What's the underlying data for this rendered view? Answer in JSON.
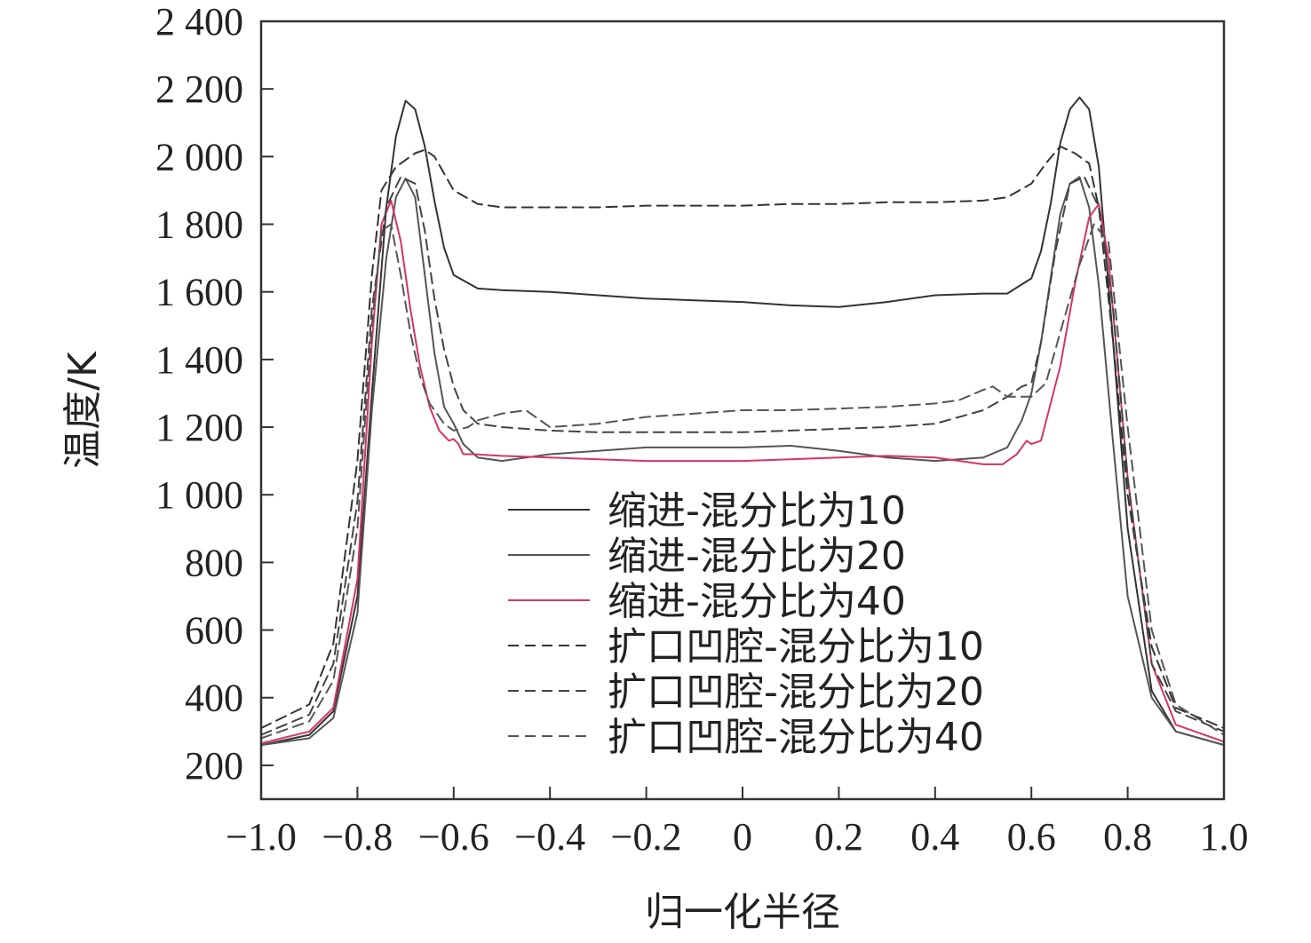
{
  "chart_data": {
    "type": "line",
    "title": "",
    "xlabel": "归一化半径",
    "ylabel": "温度/K",
    "xlim": [
      -1.0,
      1.0
    ],
    "ylim": [
      100,
      2400
    ],
    "x_ticks": [
      -1.0,
      -0.8,
      -0.6,
      -0.4,
      -0.2,
      0,
      0.2,
      0.4,
      0.6,
      0.8,
      1.0
    ],
    "x_tick_labels": [
      "−1.0",
      "−0.8",
      "−0.6",
      "−0.4",
      "−0.2",
      "0",
      "0.2",
      "0.4",
      "0.6",
      "0.8",
      "1.0"
    ],
    "y_ticks": [
      200,
      400,
      600,
      800,
      1000,
      1200,
      1400,
      1600,
      1800,
      2000,
      2200,
      2400
    ],
    "y_tick_labels": [
      "200",
      "400",
      "600",
      "800",
      "1 000",
      "1 200",
      "1 400",
      "1 600",
      "1 800",
      "2 000",
      "2 200",
      "2 400"
    ],
    "grid": false,
    "legend_position": "bottom-center",
    "series": [
      {
        "name": "缩进-混分比为10",
        "color": "#333333",
        "dash": "solid",
        "x": [
          -1.0,
          -0.9,
          -0.85,
          -0.8,
          -0.77,
          -0.74,
          -0.72,
          -0.7,
          -0.68,
          -0.66,
          -0.64,
          -0.62,
          -0.6,
          -0.55,
          -0.5,
          -0.4,
          -0.3,
          -0.2,
          -0.1,
          0.0,
          0.1,
          0.2,
          0.3,
          0.4,
          0.5,
          0.55,
          0.6,
          0.62,
          0.64,
          0.66,
          0.68,
          0.7,
          0.72,
          0.74,
          0.77,
          0.8,
          0.85,
          0.9,
          1.0
        ],
        "y": [
          260,
          290,
          360,
          700,
          1300,
          1850,
          2060,
          2165,
          2140,
          2030,
          1870,
          1730,
          1650,
          1610,
          1605,
          1600,
          1590,
          1580,
          1575,
          1570,
          1560,
          1555,
          1570,
          1590,
          1595,
          1595,
          1640,
          1720,
          1860,
          2040,
          2140,
          2175,
          2140,
          1970,
          1450,
          900,
          420,
          300,
          260
        ]
      },
      {
        "name": "缩进-混分比为20",
        "color": "#555555",
        "dash": "solid",
        "x": [
          -1.0,
          -0.9,
          -0.85,
          -0.8,
          -0.77,
          -0.74,
          -0.72,
          -0.7,
          -0.68,
          -0.66,
          -0.64,
          -0.62,
          -0.6,
          -0.58,
          -0.55,
          -0.5,
          -0.4,
          -0.3,
          -0.2,
          -0.1,
          0.0,
          0.1,
          0.2,
          0.3,
          0.4,
          0.5,
          0.55,
          0.58,
          0.6,
          0.62,
          0.64,
          0.66,
          0.68,
          0.7,
          0.72,
          0.74,
          0.77,
          0.8,
          0.85,
          0.9,
          1.0
        ],
        "y": [
          260,
          280,
          340,
          650,
          1250,
          1700,
          1880,
          1935,
          1880,
          1650,
          1420,
          1260,
          1210,
          1150,
          1110,
          1100,
          1120,
          1130,
          1140,
          1140,
          1140,
          1145,
          1130,
          1110,
          1100,
          1110,
          1140,
          1220,
          1300,
          1450,
          1640,
          1830,
          1920,
          1940,
          1850,
          1620,
          1150,
          700,
          400,
          300,
          260
        ]
      },
      {
        "name": "缩进-混分比为40",
        "color": "#d6336c",
        "dash": "solid",
        "x": [
          -1.0,
          -0.9,
          -0.85,
          -0.8,
          -0.77,
          -0.75,
          -0.73,
          -0.71,
          -0.69,
          -0.67,
          -0.65,
          -0.63,
          -0.61,
          -0.6,
          -0.59,
          -0.58,
          -0.56,
          -0.5,
          -0.4,
          -0.3,
          -0.2,
          -0.1,
          0.0,
          0.1,
          0.2,
          0.3,
          0.4,
          0.5,
          0.54,
          0.57,
          0.59,
          0.6,
          0.62,
          0.66,
          0.69,
          0.72,
          0.74,
          0.76,
          0.8,
          0.85,
          0.9,
          1.0
        ],
        "y": [
          265,
          300,
          370,
          750,
          1450,
          1800,
          1870,
          1750,
          1550,
          1380,
          1260,
          1190,
          1160,
          1165,
          1150,
          1120,
          1120,
          1115,
          1110,
          1105,
          1100,
          1100,
          1100,
          1105,
          1110,
          1115,
          1110,
          1090,
          1090,
          1120,
          1160,
          1150,
          1160,
          1380,
          1620,
          1820,
          1860,
          1700,
          1050,
          500,
          320,
          270
        ]
      },
      {
        "name": "扩口凹腔-混分比为10",
        "color": "#333333",
        "dash": "dashed",
        "x": [
          -1.0,
          -0.9,
          -0.85,
          -0.8,
          -0.77,
          -0.75,
          -0.72,
          -0.7,
          -0.68,
          -0.66,
          -0.64,
          -0.62,
          -0.6,
          -0.55,
          -0.5,
          -0.4,
          -0.3,
          -0.2,
          -0.1,
          0.0,
          0.1,
          0.2,
          0.3,
          0.4,
          0.5,
          0.55,
          0.6,
          0.63,
          0.66,
          0.69,
          0.72,
          0.74,
          0.77,
          0.8,
          0.85,
          0.9,
          1.0
        ],
        "y": [
          310,
          380,
          560,
          1100,
          1650,
          1900,
          1970,
          1990,
          2010,
          2020,
          2000,
          1950,
          1900,
          1860,
          1850,
          1850,
          1850,
          1855,
          1855,
          1855,
          1860,
          1860,
          1865,
          1865,
          1870,
          1880,
          1920,
          1980,
          2030,
          2010,
          1980,
          1850,
          1450,
          1000,
          550,
          370,
          310
        ]
      },
      {
        "name": "扩口凹腔-混分比为20",
        "color": "#444444",
        "dash": "dashed",
        "x": [
          -1.0,
          -0.9,
          -0.85,
          -0.8,
          -0.77,
          -0.74,
          -0.71,
          -0.68,
          -0.66,
          -0.64,
          -0.62,
          -0.6,
          -0.58,
          -0.55,
          -0.5,
          -0.4,
          -0.3,
          -0.2,
          -0.1,
          0.0,
          0.1,
          0.2,
          0.3,
          0.4,
          0.45,
          0.5,
          0.55,
          0.58,
          0.6,
          0.62,
          0.65,
          0.68,
          0.71,
          0.74,
          0.77,
          0.8,
          0.85,
          0.9,
          1.0
        ],
        "y": [
          290,
          350,
          500,
          980,
          1550,
          1850,
          1940,
          1920,
          1780,
          1580,
          1430,
          1320,
          1250,
          1210,
          1200,
          1190,
          1185,
          1185,
          1185,
          1185,
          1190,
          1195,
          1200,
          1210,
          1230,
          1250,
          1290,
          1320,
          1330,
          1450,
          1720,
          1920,
          1940,
          1850,
          1550,
          1050,
          500,
          360,
          300
        ]
      },
      {
        "name": "扩口凹腔-混分比为40",
        "color": "#555555",
        "dash": "dashed",
        "x": [
          -1.0,
          -0.9,
          -0.85,
          -0.8,
          -0.77,
          -0.75,
          -0.73,
          -0.71,
          -0.69,
          -0.67,
          -0.65,
          -0.62,
          -0.6,
          -0.57,
          -0.55,
          -0.5,
          -0.45,
          -0.4,
          -0.3,
          -0.2,
          -0.1,
          0.0,
          0.1,
          0.2,
          0.3,
          0.4,
          0.45,
          0.5,
          0.52,
          0.55,
          0.6,
          0.63,
          0.66,
          0.7,
          0.73,
          0.76,
          0.8,
          0.85,
          0.9,
          1.0
        ],
        "y": [
          280,
          330,
          450,
          900,
          1500,
          1780,
          1800,
          1650,
          1480,
          1350,
          1270,
          1210,
          1190,
          1200,
          1220,
          1240,
          1250,
          1200,
          1210,
          1230,
          1240,
          1250,
          1250,
          1255,
          1260,
          1270,
          1280,
          1310,
          1320,
          1290,
          1290,
          1330,
          1480,
          1680,
          1800,
          1750,
          1200,
          600,
          380,
          290
        ]
      }
    ]
  }
}
